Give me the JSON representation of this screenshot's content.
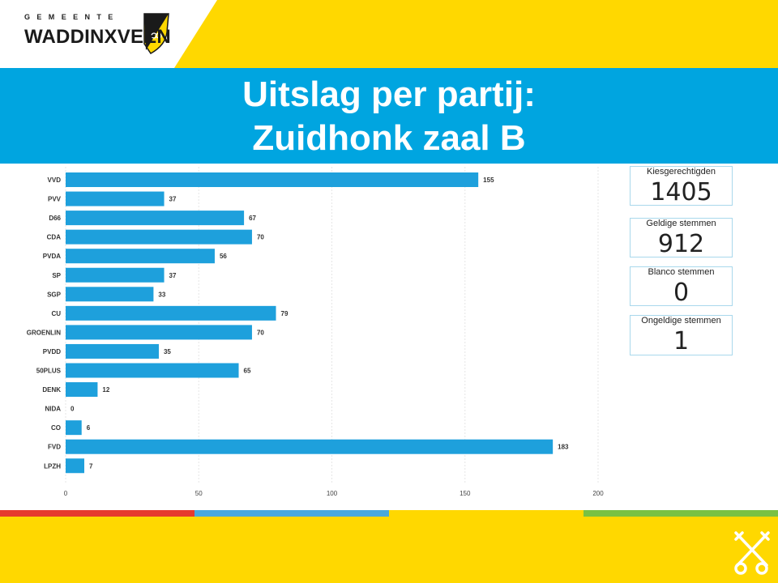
{
  "header": {
    "logo_small": "GEMEENTE",
    "logo_name": "WADDINXVEEN",
    "title_line1": "Uitslag per partij:",
    "title_line2": "Zuidhonk zaal B"
  },
  "colors": {
    "yellow": "#ffd800",
    "blue": "#00a5e0",
    "bar": "#1ea0dc",
    "stripe_red": "#e63a2e",
    "stripe_blue": "#4aa8dc",
    "stripe_yellow": "#ffd800",
    "stripe_green": "#7ac143"
  },
  "stats": [
    {
      "label": "Kiesgerechtigden",
      "value": "1405"
    },
    {
      "label": "Geldige stemmen",
      "value": "912"
    },
    {
      "label": "Blanco stemmen",
      "value": "0"
    },
    {
      "label": "Ongeldige stemmen",
      "value": "1"
    }
  ],
  "chart_data": {
    "type": "bar",
    "orientation": "horizontal",
    "categories": [
      "VVD",
      "PVV",
      "D66",
      "CDA",
      "PVDA",
      "SP",
      "SGP",
      "CU",
      "GROENLIN",
      "PVDD",
      "50PLUS",
      "DENK",
      "NIDA",
      "CO",
      "FVD",
      "LPZH"
    ],
    "values": [
      155,
      37,
      67,
      70,
      56,
      37,
      33,
      79,
      70,
      35,
      65,
      12,
      0,
      6,
      183,
      7
    ],
    "xlim": [
      0,
      200
    ],
    "xticks": [
      0,
      50,
      100,
      150,
      200
    ],
    "grid": true,
    "title": "",
    "xlabel": "",
    "ylabel": ""
  }
}
